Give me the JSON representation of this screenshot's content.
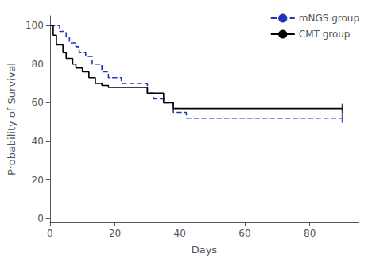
{
  "chart_data": {
    "type": "step",
    "xlabel": "Days",
    "ylabel": "Probability of Survival",
    "xlim": [
      0,
      95
    ],
    "ylim": [
      -2,
      105
    ],
    "xticks": [
      0,
      20,
      40,
      60,
      80
    ],
    "yticks": [
      0,
      20,
      40,
      60,
      80,
      100
    ],
    "grid": false,
    "legend": "upper right",
    "series": [
      {
        "name": "mNGS group",
        "color": "#2233bb",
        "line_style": "dashed",
        "marker": "|",
        "x": [
          0,
          2,
          3,
          5,
          6,
          8,
          9,
          11,
          13,
          16,
          18,
          22,
          28,
          30,
          32,
          35,
          38,
          42,
          90
        ],
        "values": [
          100,
          100,
          97,
          94,
          91,
          89,
          86,
          84,
          80,
          76,
          73,
          70,
          70,
          65,
          62,
          60,
          55,
          52,
          52
        ],
        "censor_x": [
          90
        ],
        "censor_y": [
          52
        ]
      },
      {
        "name": "CMT group",
        "color": "#000000",
        "line_style": "solid",
        "marker": "|",
        "x": [
          0,
          1,
          2,
          4,
          5,
          7,
          8,
          10,
          12,
          14,
          16,
          18,
          20,
          28,
          30,
          35,
          38,
          43,
          90
        ],
        "values": [
          100,
          95,
          90,
          86,
          83,
          80,
          78,
          76,
          73,
          70,
          69,
          68,
          68,
          68,
          65,
          60,
          57,
          57,
          57
        ],
        "censor_x": [
          90
        ],
        "censor_y": [
          57
        ]
      }
    ]
  }
}
